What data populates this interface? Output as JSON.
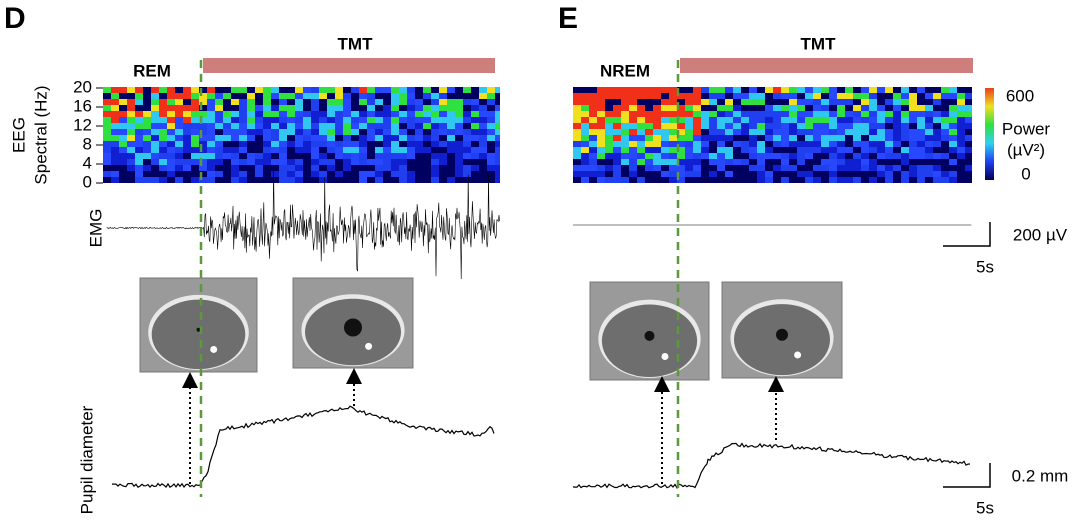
{
  "panels": [
    {
      "letter": "D",
      "state": "REM",
      "stimulus": "TMT",
      "spectral_axis_label": [
        "EEG",
        "Spectral (Hz)"
      ],
      "spectral_ticks": [
        "20",
        "16",
        "12",
        "8",
        "4",
        "0"
      ],
      "emg_label": "EMG",
      "pupil_label": "Pupil diameter"
    },
    {
      "letter": "E",
      "state": "NREM",
      "stimulus": "TMT",
      "colorbar": {
        "max": "600",
        "label": "Power",
        "unit": "(µV²)",
        "min": "0"
      },
      "emg_scale": "200 µV",
      "emg_time_scale": "5s",
      "pupil_scale": "0.2 mm",
      "pupil_time_scale": "5s"
    }
  ]
}
